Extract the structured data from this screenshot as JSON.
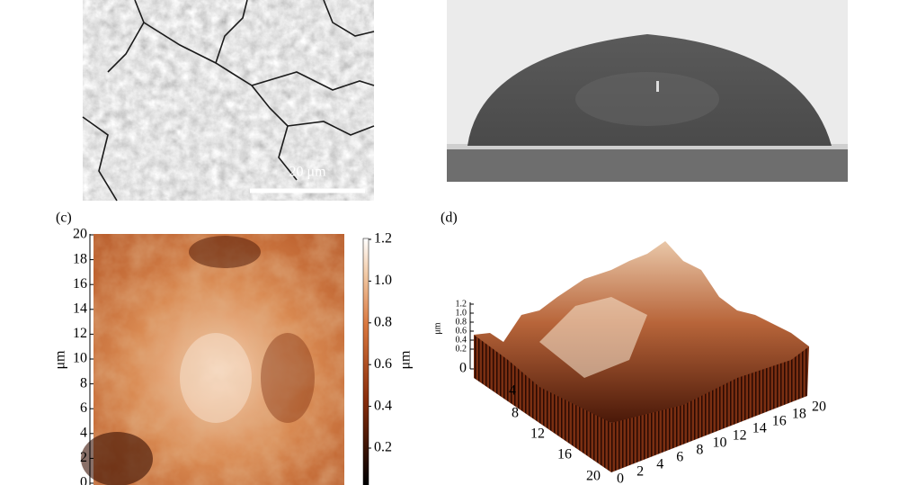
{
  "panel_a": {
    "scale_bar": "20 μm"
  },
  "panel_c": {
    "label": "(c)",
    "y_axis_label": "μm",
    "y_ticks": [
      "0",
      "2",
      "4",
      "6",
      "8",
      "10",
      "12",
      "14",
      "16",
      "18",
      "20"
    ],
    "colorbar_label": "μm",
    "colorbar_ticks": [
      "0.2",
      "0.4",
      "0.6",
      "0.8",
      "1.0",
      "1.2"
    ]
  },
  "panel_d": {
    "label": "(d)",
    "z_axis_label": "μm",
    "z_ticks": [
      "0",
      "0.2",
      "0.4",
      "0.6",
      "0.8",
      "1.0",
      "1.2"
    ],
    "y_ticks": [
      "4",
      "8",
      "12",
      "16",
      "20"
    ],
    "x_ticks": [
      "0",
      "2",
      "4",
      "6",
      "8",
      "10",
      "12",
      "14",
      "16",
      "18",
      "20"
    ]
  }
}
